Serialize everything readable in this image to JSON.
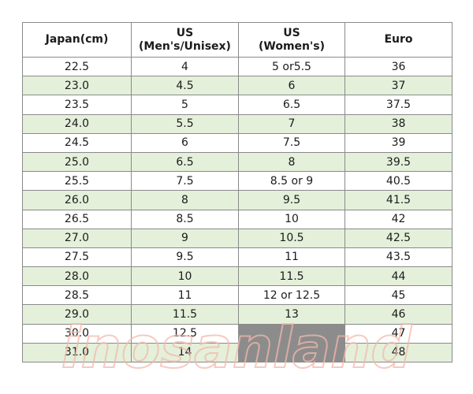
{
  "table": {
    "headers": [
      [
        "Japan(cm)"
      ],
      [
        "US",
        "(Men's/Unisex)"
      ],
      [
        "US",
        "(Women's)"
      ],
      [
        "Euro"
      ]
    ],
    "rows": [
      [
        "22.5",
        "4",
        "5 or5.5",
        "36"
      ],
      [
        "23.0",
        "4.5",
        "6",
        "37"
      ],
      [
        "23.5",
        "5",
        "6.5",
        "37.5"
      ],
      [
        "24.0",
        "5.5",
        "7",
        "38"
      ],
      [
        "24.5",
        "6",
        "7.5",
        "39"
      ],
      [
        "25.0",
        "6.5",
        "8",
        "39.5"
      ],
      [
        "25.5",
        "7.5",
        "8.5 or 9",
        "40.5"
      ],
      [
        "26.0",
        "8",
        "9.5",
        "41.5"
      ],
      [
        "26.5",
        "8.5",
        "10",
        "42"
      ],
      [
        "27.0",
        "9",
        "10.5",
        "42.5"
      ],
      [
        "27.5",
        "9.5",
        "11",
        "43.5"
      ],
      [
        "28.0",
        "10",
        "11.5",
        "44"
      ],
      [
        "28.5",
        "11",
        "12 or 12.5",
        "45"
      ],
      [
        "29.0",
        "11.5",
        "13",
        "46"
      ],
      [
        "30.0",
        "12.5",
        "",
        "47"
      ],
      [
        "31.0",
        "14",
        "",
        "48"
      ]
    ]
  },
  "watermark": {
    "text": "inosanland"
  },
  "colors": {
    "stripe": "#e4f0da",
    "border": "#8a8a8a",
    "empty_cell": "#8c8c8c",
    "watermark": "#f3b9ac"
  }
}
